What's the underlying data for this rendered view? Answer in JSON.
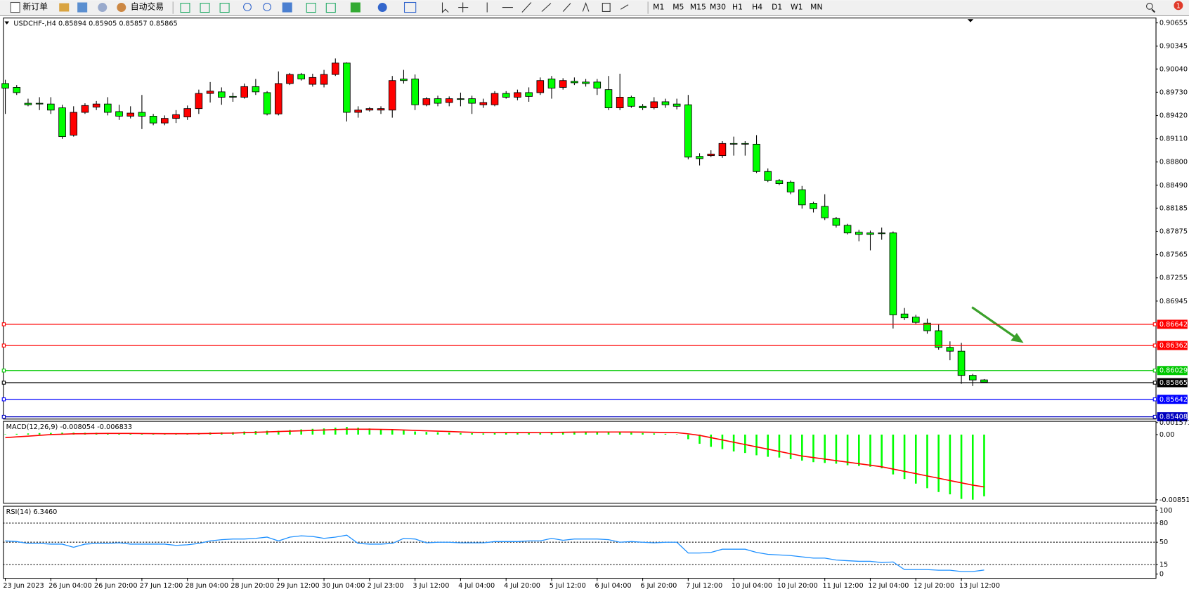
{
  "toolbar": {
    "buttons": [
      "新订单",
      "自动交易"
    ],
    "timeframes": [
      "M1",
      "M5",
      "M15",
      "M30",
      "H1",
      "H4",
      "D1",
      "W1",
      "MN"
    ],
    "notifications": "1"
  },
  "chart_data": [
    {
      "type": "candlestick",
      "title": "USDCHF-,H4  0.85894 0.85905 0.85857 0.85865",
      "categories": [
        "23 Jun 2023",
        null,
        null,
        null,
        "26 Jun 04:00",
        null,
        null,
        null,
        "26 Jun 20:00",
        null,
        null,
        null,
        "27 Jun 12:00",
        null,
        null,
        null,
        "28 Jun 04:00",
        null,
        null,
        null,
        "28 Jun 20:00",
        null,
        null,
        null,
        "29 Jun 12:00",
        null,
        null,
        null,
        "30 Jun 04:00",
        null,
        null,
        null,
        "2 Jul 23:00",
        null,
        null,
        null,
        "3 Jul 12:00",
        null,
        null,
        null,
        "4 Jul 04:00",
        null,
        null,
        null,
        "4 Jul 20:00",
        null,
        null,
        null,
        "5 Jul 12:00",
        null,
        null,
        null,
        "6 Jul 04:00",
        null,
        null,
        null,
        "6 Jul 20:00",
        null,
        null,
        null,
        "7 Jul 12:00",
        null,
        null,
        null,
        "10 Jul 04:00",
        null,
        null,
        null,
        "10 Jul 20:00",
        null,
        null,
        null,
        "11 Jul 12:00",
        null,
        null,
        null,
        "12 Jul 04:00",
        null,
        null,
        null,
        "12 Jul 20:00",
        null,
        null,
        null,
        "13 Jul 12:00",
        null,
        null
      ],
      "open": [
        0.89846,
        0.89795,
        0.89583,
        0.89583,
        0.89573,
        0.89522,
        0.89158,
        0.89462,
        0.89532,
        0.89573,
        0.89472,
        0.89411,
        0.89462,
        0.89411,
        0.8932,
        0.89381,
        0.89401,
        0.89512,
        0.89714,
        0.89735,
        0.89674,
        0.89664,
        0.89805,
        0.89725,
        0.89441,
        0.89846,
        0.89967,
        0.89836,
        0.89836,
        0.89967,
        0.90119,
        0.89462,
        0.89492,
        0.89492,
        0.89492,
        0.89907,
        0.89907,
        0.89563,
        0.89644,
        0.89593,
        0.89644,
        0.89644,
        0.89563,
        0.89563,
        0.89714,
        0.89664,
        0.89725,
        0.89725,
        0.89907,
        0.89795,
        0.89876,
        0.89866,
        0.89866,
        0.89765,
        0.89522,
        0.89664,
        0.89543,
        0.89522,
        0.89603,
        0.89573,
        0.89563,
        0.88875,
        0.88885,
        0.88885,
        0.89047,
        0.89047,
        0.89037,
        0.88673,
        0.88552,
        0.88532,
        0.8843,
        0.88249,
        0.88208,
        0.88046,
        0.87955,
        0.87864,
        0.87854,
        0.87854,
        0.87854,
        0.86773,
        0.86732,
        0.86651,
        0.8655,
        0.86328,
        0.86277,
        0.85954,
        0.85894
      ],
      "high": [
        0.89896,
        0.89826,
        0.89644,
        0.89664,
        0.89664,
        0.89563,
        0.89543,
        0.89583,
        0.89613,
        0.89664,
        0.89563,
        0.89543,
        0.89694,
        0.89441,
        0.89421,
        0.89492,
        0.89553,
        0.89765,
        0.89866,
        0.89795,
        0.89725,
        0.89846,
        0.89907,
        0.89745,
        0.90008,
        0.89987,
        0.89987,
        0.89977,
        0.90028,
        0.9018,
        0.90129,
        0.89543,
        0.89532,
        0.89543,
        0.89947,
        0.90028,
        0.89967,
        0.89664,
        0.89684,
        0.89674,
        0.89725,
        0.89684,
        0.89644,
        0.89745,
        0.89745,
        0.89765,
        0.89795,
        0.89927,
        0.89947,
        0.89917,
        0.89927,
        0.89907,
        0.89907,
        0.89947,
        0.89977,
        0.89684,
        0.89573,
        0.89664,
        0.89644,
        0.89644,
        0.89694,
        0.88916,
        0.88956,
        0.89078,
        0.89138,
        0.89078,
        0.89158,
        0.88714,
        0.88572,
        0.88552,
        0.88481,
        0.88269,
        0.8837,
        0.88067,
        0.87976,
        0.87895,
        0.87885,
        0.87925,
        0.87874,
        0.86853,
        0.86762,
        0.86712,
        0.86631,
        0.86408,
        0.86388,
        0.85974,
        0.85905
      ],
      "low": [
        0.89441,
        0.89694,
        0.89543,
        0.89492,
        0.89441,
        0.89108,
        0.89138,
        0.89441,
        0.89492,
        0.89421,
        0.89361,
        0.89381,
        0.89239,
        0.8929,
        0.8929,
        0.8932,
        0.89361,
        0.89441,
        0.89593,
        0.89563,
        0.89603,
        0.89644,
        0.89694,
        0.89421,
        0.89421,
        0.89826,
        0.89886,
        0.89805,
        0.89795,
        0.89947,
        0.8934,
        0.89391,
        0.89472,
        0.89441,
        0.89391,
        0.89846,
        0.89492,
        0.89543,
        0.89543,
        0.89543,
        0.89543,
        0.89441,
        0.89522,
        0.89543,
        0.89644,
        0.89623,
        0.89603,
        0.89694,
        0.89644,
        0.89765,
        0.89826,
        0.89805,
        0.89694,
        0.89492,
        0.89492,
        0.89522,
        0.89492,
        0.89502,
        0.89522,
        0.89502,
        0.88835,
        0.88754,
        0.88865,
        0.88855,
        0.88885,
        0.88885,
        0.88653,
        0.88532,
        0.88491,
        0.8837,
        0.88178,
        0.88127,
        0.88026,
        0.87925,
        0.87834,
        0.87743,
        0.87622,
        0.87763,
        0.8658,
        0.86692,
        0.86631,
        0.8651,
        0.86297,
        0.86156,
        0.85842,
        0.85812,
        0.85857
      ],
      "close": [
        0.89785,
        0.89725,
        0.89563,
        0.89573,
        0.89492,
        0.89138,
        0.89462,
        0.89553,
        0.89573,
        0.89462,
        0.89411,
        0.89452,
        0.89411,
        0.8932,
        0.89381,
        0.89431,
        0.89512,
        0.89714,
        0.89745,
        0.89664,
        0.89664,
        0.89805,
        0.89735,
        0.89441,
        0.89846,
        0.89967,
        0.89907,
        0.89927,
        0.89967,
        0.90119,
        0.89462,
        0.89492,
        0.89512,
        0.89512,
        0.89886,
        0.89886,
        0.89563,
        0.89644,
        0.89583,
        0.89644,
        0.89634,
        0.89583,
        0.89593,
        0.89714,
        0.89664,
        0.89725,
        0.89674,
        0.89886,
        0.89785,
        0.89886,
        0.89856,
        0.89846,
        0.89785,
        0.89522,
        0.89664,
        0.89543,
        0.89522,
        0.89603,
        0.89563,
        0.89543,
        0.88865,
        0.88845,
        0.88906,
        0.89047,
        0.89037,
        0.89037,
        0.88673,
        0.88552,
        0.88511,
        0.884,
        0.88228,
        0.88178,
        0.88056,
        0.87955,
        0.87854,
        0.87834,
        0.87834,
        0.87844,
        0.86762,
        0.86722,
        0.86661,
        0.8655,
        0.86328,
        0.86277,
        0.85954,
        0.85893,
        0.85865
      ],
      "up_color": "#ff0000",
      "down_color": "#00ff00",
      "ylim": [
        0.85377,
        0.90725
      ],
      "yticks": [
        0.90655,
        0.90345,
        {
          "value": 0.9004,
          "label": "0.90040"
        },
        {
          "value": 0.8973,
          "label": "0.89730"
        },
        {
          "value": 0.8942,
          "label": "0.89420"
        },
        {
          "value": 0.8911,
          "label": "0.89110"
        },
        {
          "value": 0.888,
          "label": "0.88800"
        },
        {
          "value": 0.8849,
          "label": "0.88490"
        },
        0.88185,
        0.87875,
        0.87565,
        0.87255,
        0.86945
      ],
      "levels": [
        {
          "value": 0.86642,
          "color": "#ff0000"
        },
        {
          "value": 0.86362,
          "color": "#ff0000"
        },
        {
          "value": 0.86029,
          "color": "#00c800"
        },
        {
          "value": 0.85865,
          "color": "#000000"
        },
        {
          "value": 0.85642,
          "color": "#0000ff"
        },
        {
          "value": 0.85408,
          "color": "#0000c0"
        }
      ]
    },
    {
      "type": "macd",
      "title": "MACD(12,26,9) -0.008054 -0.006833",
      "histogram": {
        "color": "#00ff00",
        "values": [
          5e-05,
          0.0001,
          0.00015,
          0.0002,
          0.00022,
          0.00025,
          0.00025,
          0.00024,
          0.00024,
          0.00023,
          0.0002,
          0.0002,
          0.00018,
          0.00015,
          0.00014,
          0.00014,
          0.00016,
          0.0002,
          0.00028,
          0.0003,
          0.00032,
          0.0004,
          0.00045,
          0.0005,
          0.0005,
          0.0006,
          0.00068,
          0.00075,
          0.0008,
          0.0009,
          0.001,
          0.0009,
          0.0008,
          0.0007,
          0.0007,
          0.0006,
          0.0004,
          0.00035,
          0.0003,
          0.00025,
          0.0002,
          0.00018,
          0.00015,
          0.00018,
          0.0002,
          0.00022,
          0.00025,
          0.0003,
          0.00035,
          0.00035,
          0.0004,
          0.0004,
          0.0004,
          0.00035,
          0.0003,
          0.00025,
          0.0002,
          0.00015,
          0.0001,
          5e-05,
          -0.0006,
          -0.0012,
          -0.0016,
          -0.0019,
          -0.0022,
          -0.0024,
          -0.0027,
          -0.0029,
          -0.003,
          -0.0032,
          -0.0034,
          -0.0036,
          -0.0037,
          -0.0038,
          -0.004,
          -0.0041,
          -0.0042,
          -0.0044,
          -0.0052,
          -0.0058,
          -0.0064,
          -0.007,
          -0.0075,
          -0.0078,
          -0.0084,
          -0.0085,
          -0.008054
        ]
      },
      "signal": {
        "color": "#ff0000",
        "values": [
          -0.0004,
          -0.0003,
          -0.0002,
          -0.0001,
          0,
          5e-05,
          0.0001,
          0.00012,
          0.00014,
          0.00015,
          0.00015,
          0.00015,
          0.00014,
          0.00013,
          0.00012,
          0.00012,
          0.00012,
          0.00013,
          0.00015,
          0.00018,
          0.0002,
          0.00025,
          0.0003,
          0.00035,
          0.0004,
          0.00045,
          0.0005,
          0.00055,
          0.0006,
          0.00065,
          0.0007,
          0.0007,
          0.0007,
          0.00068,
          0.00065,
          0.0006,
          0.00055,
          0.0005,
          0.00045,
          0.0004,
          0.00035,
          0.0003,
          0.00028,
          0.00026,
          0.00025,
          0.00025,
          0.00025,
          0.00026,
          0.00028,
          0.0003,
          0.00032,
          0.00033,
          0.00034,
          0.00034,
          0.00034,
          0.00033,
          0.00032,
          0.0003,
          0.00028,
          0.00025,
          0.0001,
          -0.0001,
          -0.0004,
          -0.0007,
          -0.001,
          -0.0013,
          -0.0016,
          -0.0019,
          -0.0022,
          -0.0025,
          -0.0028,
          -0.003,
          -0.0032,
          -0.0034,
          -0.0036,
          -0.0038,
          -0.004,
          -0.0042,
          -0.0045,
          -0.0048,
          -0.0051,
          -0.0054,
          -0.0057,
          -0.006,
          -0.0063,
          -0.0066,
          -0.006833
        ]
      },
      "ylim": [
        -0.00891,
        0.00178
      ],
      "yticks": [
        0.001573,
        {
          "value": 0,
          "label": "0.00"
        },
        -0.008513
      ]
    },
    {
      "type": "line",
      "title": "RSI(14) 6.3460",
      "color": "#1e90ff",
      "values": [
        52,
        51,
        48,
        48,
        47,
        47,
        42,
        47,
        48,
        48,
        49,
        47,
        47,
        47,
        47,
        45,
        46,
        48,
        52,
        54,
        55,
        55,
        56,
        58,
        52,
        58,
        60,
        59,
        56,
        58,
        61,
        48,
        47,
        47,
        48,
        56,
        55,
        49,
        50,
        50,
        49,
        49,
        49,
        51,
        51,
        51,
        52,
        52,
        56,
        53,
        55,
        55,
        55,
        54,
        50,
        51,
        50,
        49,
        50,
        50,
        33,
        33,
        34,
        39,
        39,
        39,
        34,
        31,
        30,
        29,
        27,
        25,
        25,
        22,
        21,
        20,
        20,
        18,
        19,
        7,
        7,
        7,
        6,
        6,
        4,
        4,
        6.346
      ],
      "ylim": [
        -6,
        107
      ],
      "yticks": [
        100,
        80,
        50,
        15,
        0
      ],
      "levels": [
        80,
        50,
        15
      ]
    }
  ]
}
